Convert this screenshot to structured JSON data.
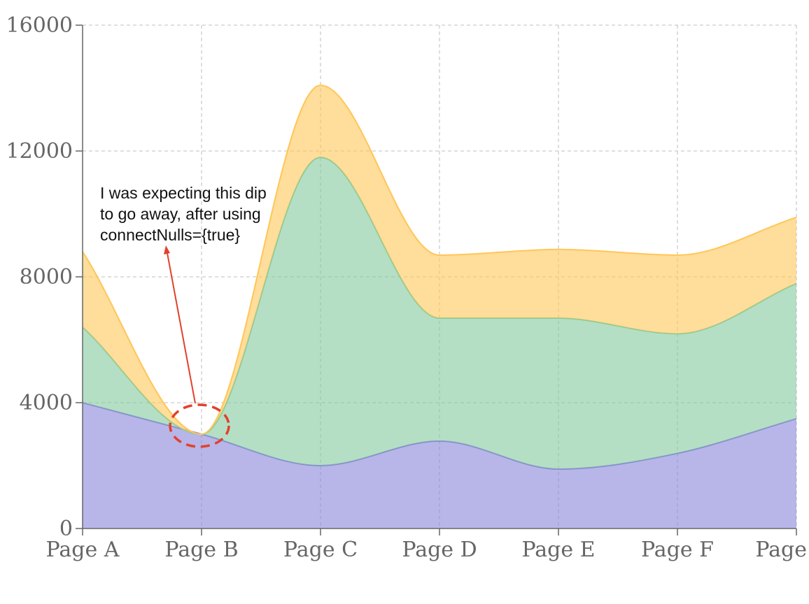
{
  "chart_data": {
    "type": "area",
    "stacked": true,
    "curve": "monotone",
    "categories": [
      "Page A",
      "Page B",
      "Page C",
      "Page D",
      "Page E",
      "Page F",
      "Page"
    ],
    "series": [
      {
        "values": [
          4000,
          3000,
          2000,
          2780,
          1890,
          2390,
          3490
        ],
        "color": "#8884d8"
      },
      {
        "values": [
          2400,
          0,
          9800,
          3908,
          4800,
          3800,
          4300
        ],
        "color": "#82ca9d"
      },
      {
        "values": [
          2400,
          0,
          2290,
          2000,
          2181,
          2500,
          2100
        ],
        "color": "#ffc658"
      }
    ],
    "ylim": [
      0,
      16000
    ],
    "yticks": [
      "0",
      "4000",
      "8000",
      "12000",
      "16000"
    ],
    "grid": true,
    "annotation": {
      "lines": [
        "I was expecting this dip",
        "to go away, after using",
        "connectNulls={true}"
      ],
      "target_category": "Page B",
      "arrow_color": "#e2412c"
    }
  }
}
